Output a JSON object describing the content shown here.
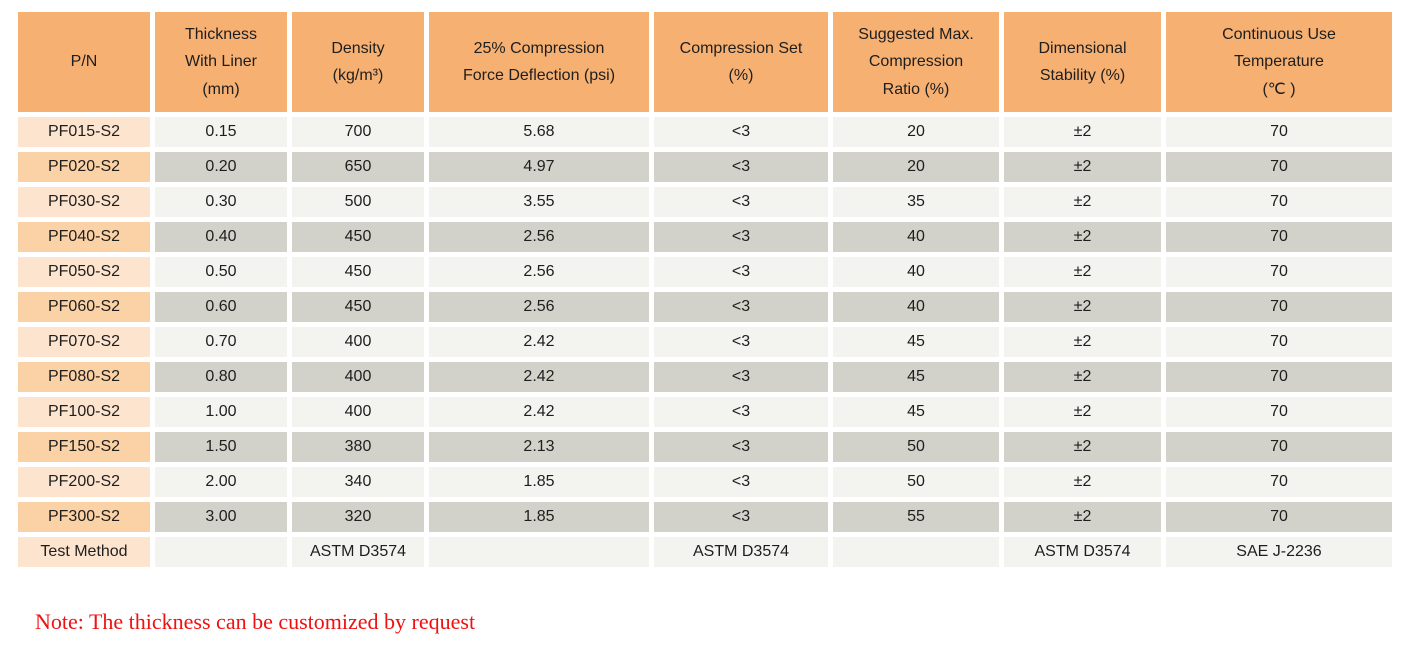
{
  "colors": {
    "header_bg": "#F5B072",
    "pn_cell_light": "#FDE4CE",
    "pn_cell_dark": "#FBD2A6",
    "data_cell_light": "#F3F3EF",
    "data_cell_dark": "#D2D2CB",
    "note_text": "#F01010"
  },
  "table": {
    "columns": [
      {
        "id": "pn",
        "label": "P/N"
      },
      {
        "id": "thickness",
        "label": "Thickness\nWith Liner\n(mm)"
      },
      {
        "id": "density",
        "label": "Density\n(kg/m³)"
      },
      {
        "id": "cfd",
        "label": "25% Compression\nForce Deflection (psi)"
      },
      {
        "id": "set",
        "label": "Compression Set\n(%)"
      },
      {
        "id": "ratio",
        "label": "Suggested Max.\nCompression\nRatio (%)"
      },
      {
        "id": "stability",
        "label": "Dimensional\nStability (%)"
      },
      {
        "id": "temp",
        "label": "Continuous Use\nTemperature\n(℃ )"
      }
    ],
    "rows": [
      [
        "PF015-S2",
        "0.15",
        "700",
        "5.68",
        "<3",
        "20",
        "±2",
        "70"
      ],
      [
        "PF020-S2",
        "0.20",
        "650",
        "4.97",
        "<3",
        "20",
        "±2",
        "70"
      ],
      [
        "PF030-S2",
        "0.30",
        "500",
        "3.55",
        "<3",
        "35",
        "±2",
        "70"
      ],
      [
        "PF040-S2",
        "0.40",
        "450",
        "2.56",
        "<3",
        "40",
        "±2",
        "70"
      ],
      [
        "PF050-S2",
        "0.50",
        "450",
        "2.56",
        "<3",
        "40",
        "±2",
        "70"
      ],
      [
        "PF060-S2",
        "0.60",
        "450",
        "2.56",
        "<3",
        "40",
        "±2",
        "70"
      ],
      [
        "PF070-S2",
        "0.70",
        "400",
        "2.42",
        "<3",
        "45",
        "±2",
        "70"
      ],
      [
        "PF080-S2",
        "0.80",
        "400",
        "2.42",
        "<3",
        "45",
        "±2",
        "70"
      ],
      [
        "PF100-S2",
        "1.00",
        "400",
        "2.42",
        "<3",
        "45",
        "±2",
        "70"
      ],
      [
        "PF150-S2",
        "1.50",
        "380",
        "2.13",
        "<3",
        "50",
        "±2",
        "70"
      ],
      [
        "PF200-S2",
        "2.00",
        "340",
        "1.85",
        "<3",
        "50",
        "±2",
        "70"
      ],
      [
        "PF300-S2",
        "3.00",
        "320",
        "1.85",
        "<3",
        "55",
        "±2",
        "70"
      ],
      [
        "Test Method",
        "",
        "ASTM D3574",
        "",
        "ASTM D3574",
        "",
        "ASTM D3574",
        "SAE J-2236"
      ]
    ]
  },
  "note": "Note: The thickness can be customized by request"
}
